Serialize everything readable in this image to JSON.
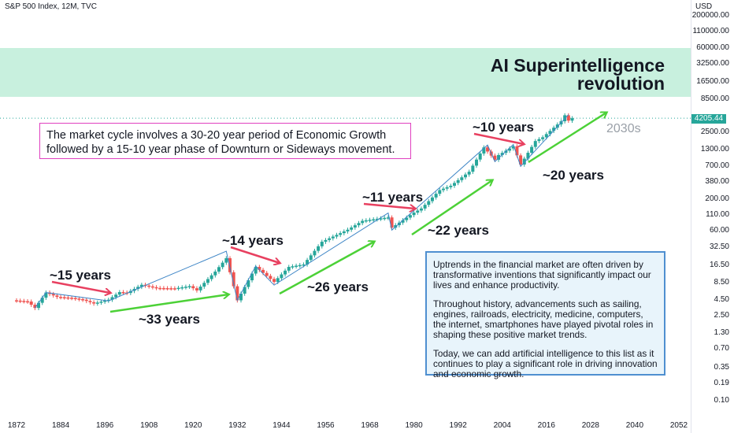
{
  "header": {
    "title": "S&P 500 Index, 12M, TVC",
    "currency": "USD",
    "last_price": "4205.44"
  },
  "banner": {
    "line1": "AI Superintelligence",
    "line2": "revolution",
    "era": "2030s"
  },
  "notes": {
    "cycle": "The market cycle involves a 30-20 year period of Economic Growth followed by a 15-10 year phase of Downturn or Sideways movement.",
    "info_p1": "Uptrends in the financial market are often driven by transformative inventions that significantly impact our lives and enhance productivity.",
    "info_p2": "Throughout history, advancements such as sailing, engines, railroads, electricity, medicine, computers, the internet, smartphones have played pivotal roles in shaping these positive market trends.",
    "info_p3": "Today, we can add artificial intelligence to this list as it continues to play a significant role in driving innovation and economic growth."
  },
  "labels": {
    "down1": "~15 years",
    "up1": "~33 years",
    "down2": "~14 years",
    "up2": "~26 years",
    "down3": "~11 years",
    "up3": "~22 years",
    "down4": "~10 years",
    "up4": "~20 years"
  },
  "colors": {
    "up": "#26a69a",
    "down": "#ef5350",
    "green_arrow": "#4cd137",
    "red_arrow": "#e84060",
    "trend": "#3d85c6",
    "banner": "#c8f0de"
  },
  "chart_data": {
    "type": "candlestick",
    "title": "S&P 500 Index, 12M, TVC",
    "y_scale": "log",
    "y_ticks": [
      "200000.00",
      "110000.00",
      "60000.00",
      "32500.00",
      "16500.00",
      "8500.00",
      "4205.44",
      "2500.00",
      "1300.00",
      "700.00",
      "380.00",
      "200.00",
      "110.00",
      "60.00",
      "32.50",
      "16.50",
      "8.50",
      "4.50",
      "2.50",
      "1.30",
      "0.70",
      "0.35",
      "0.19",
      "0.10"
    ],
    "x_ticks": [
      "1872",
      "1884",
      "1896",
      "1908",
      "1920",
      "1932",
      "1944",
      "1956",
      "1968",
      "1980",
      "1992",
      "2004",
      "2016",
      "2028",
      "2040",
      "2052"
    ],
    "series": [
      {
        "x": [
          1871,
          1875,
          1877,
          1880,
          1883,
          1887,
          1890,
          1893,
          1897,
          1900,
          1902,
          1906,
          1910,
          1915,
          1919,
          1921,
          1926,
          1929,
          1932,
          1937,
          1942,
          1946,
          1950,
          1955,
          1962,
          1966,
          1970,
          1973,
          1974,
          1980,
          1982,
          1987,
          1990,
          1995,
          1999,
          2002,
          2003,
          2007,
          2009,
          2013,
          2015,
          2020,
          2021,
          2022,
          2023
        ],
        "y": [
          4.4,
          4.2,
          3.3,
          5.9,
          5.0,
          4.8,
          4.5,
          3.9,
          4.5,
          6.0,
          5.8,
          7.9,
          7.0,
          6.9,
          7.5,
          6.4,
          13.0,
          21.5,
          4.4,
          15.5,
          8.8,
          15.5,
          17.0,
          40.0,
          63.0,
          88.0,
          95.0,
          100.0,
          68.0,
          120.0,
          140.0,
          280.0,
          330.0,
          560.0,
          1400.0,
          880.0,
          1050.0,
          1460.0,
          735.0,
          1780.0,
          2050.0,
          3750.0,
          4700.0,
          3840.0,
          4205.44
        ]
      }
    ],
    "cycle_annotations": [
      "~15 years",
      "~33 years",
      "~14 years",
      "~26 years",
      "~11 years",
      "~22 years",
      "~10 years",
      "~20 years"
    ]
  }
}
